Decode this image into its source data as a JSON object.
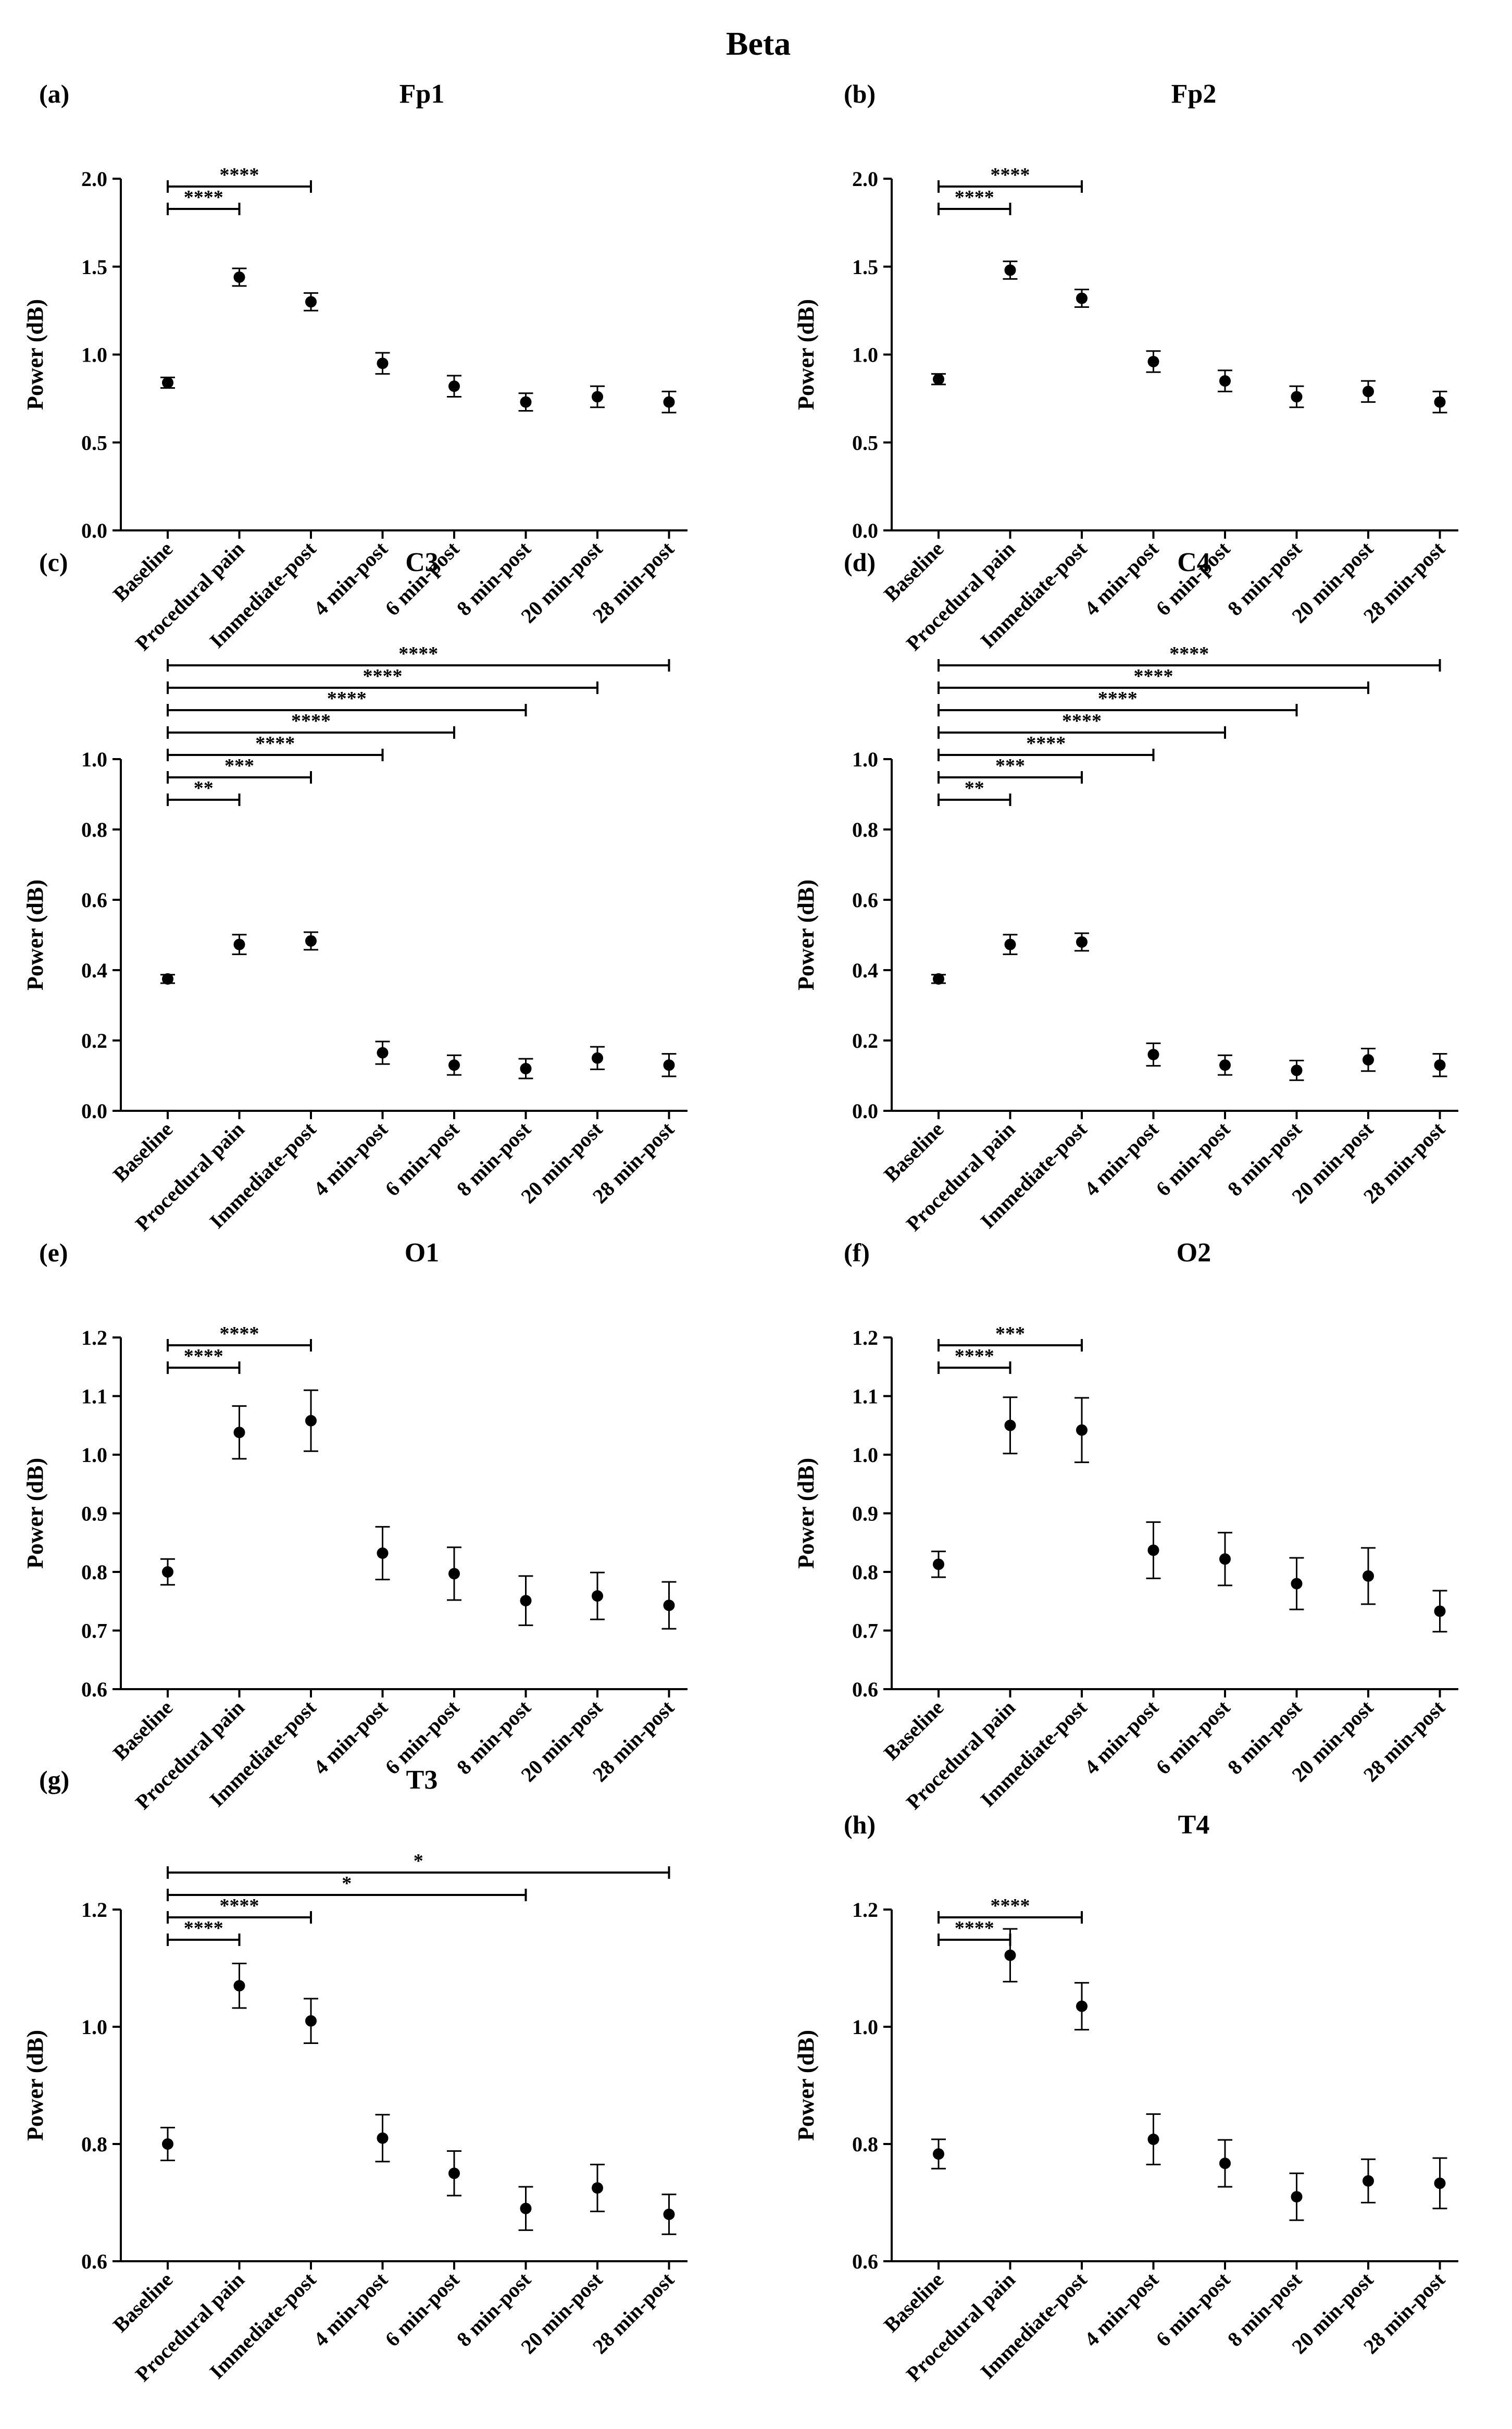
{
  "figure_title": "Beta",
  "chart_data": [
    {
      "id": "a",
      "panel_label": "(a)",
      "type": "scatter",
      "title": "Fp1",
      "xlabel": "",
      "ylabel": "Power (dB)",
      "categories": [
        "Baseline",
        "Procedural pain",
        "Immediate-post",
        "4 min-post",
        "6 min-post",
        "8 min-post",
        "20 min-post",
        "28 min-post"
      ],
      "means": [
        0.84,
        1.44,
        1.3,
        0.95,
        0.82,
        0.73,
        0.76,
        0.73
      ],
      "errors": [
        0.03,
        0.05,
        0.05,
        0.06,
        0.06,
        0.05,
        0.06,
        0.06
      ],
      "ylim": [
        0.0,
        2.0
      ],
      "yticks": [
        0.0,
        0.5,
        1.0,
        1.5,
        2.0
      ],
      "ytick_labels": [
        "0.0",
        "0.5",
        "1.0",
        "1.5",
        "2.0"
      ],
      "significance": [
        {
          "from": 0,
          "to": 1,
          "label": "****"
        },
        {
          "from": 0,
          "to": 2,
          "label": "****"
        }
      ]
    },
    {
      "id": "b",
      "panel_label": "(b)",
      "type": "scatter",
      "title": "Fp2",
      "xlabel": "",
      "ylabel": "Power (dB)",
      "categories": [
        "Baseline",
        "Procedural pain",
        "Immediate-post",
        "4 min-post",
        "6 min-post",
        "8 min-post",
        "20 min-post",
        "28 min-post"
      ],
      "means": [
        0.86,
        1.48,
        1.32,
        0.96,
        0.85,
        0.76,
        0.79,
        0.73
      ],
      "errors": [
        0.03,
        0.05,
        0.05,
        0.06,
        0.06,
        0.06,
        0.06,
        0.06
      ],
      "ylim": [
        0.0,
        2.0
      ],
      "yticks": [
        0.0,
        0.5,
        1.0,
        1.5,
        2.0
      ],
      "ytick_labels": [
        "0.0",
        "0.5",
        "1.0",
        "1.5",
        "2.0"
      ],
      "significance": [
        {
          "from": 0,
          "to": 1,
          "label": "****"
        },
        {
          "from": 0,
          "to": 2,
          "label": "****"
        }
      ]
    },
    {
      "id": "c",
      "panel_label": "(c)",
      "type": "scatter",
      "title": "C3",
      "xlabel": "",
      "ylabel": "Power (dB)",
      "categories": [
        "Baseline",
        "Procedural pain",
        "Immediate-post",
        "4 min-post",
        "6 min-post",
        "8 min-post",
        "20 min-post",
        "28 min-post"
      ],
      "means": [
        0.375,
        0.473,
        0.483,
        0.165,
        0.13,
        0.12,
        0.15,
        0.13
      ],
      "errors": [
        0.012,
        0.028,
        0.025,
        0.032,
        0.028,
        0.028,
        0.032,
        0.032
      ],
      "ylim": [
        0.0,
        1.0
      ],
      "yticks": [
        0.0,
        0.2,
        0.4,
        0.6,
        0.8,
        1.0
      ],
      "ytick_labels": [
        "0.0",
        "0.2",
        "0.4",
        "0.6",
        "0.8",
        "1.0"
      ],
      "significance": [
        {
          "from": 0,
          "to": 1,
          "label": "**"
        },
        {
          "from": 0,
          "to": 2,
          "label": "***"
        },
        {
          "from": 0,
          "to": 3,
          "label": "****"
        },
        {
          "from": 0,
          "to": 4,
          "label": "****"
        },
        {
          "from": 0,
          "to": 5,
          "label": "****"
        },
        {
          "from": 0,
          "to": 6,
          "label": "****"
        },
        {
          "from": 0,
          "to": 7,
          "label": "****"
        }
      ]
    },
    {
      "id": "d",
      "panel_label": "(d)",
      "type": "scatter",
      "title": "C4",
      "xlabel": "",
      "ylabel": "Power (dB)",
      "categories": [
        "Baseline",
        "Procedural pain",
        "Immediate-post",
        "4 min-post",
        "6 min-post",
        "8 min-post",
        "20 min-post",
        "28 min-post"
      ],
      "means": [
        0.375,
        0.473,
        0.48,
        0.16,
        0.13,
        0.115,
        0.145,
        0.13
      ],
      "errors": [
        0.012,
        0.028,
        0.025,
        0.032,
        0.028,
        0.028,
        0.032,
        0.032
      ],
      "ylim": [
        0.0,
        1.0
      ],
      "yticks": [
        0.0,
        0.2,
        0.4,
        0.6,
        0.8,
        1.0
      ],
      "ytick_labels": [
        "0.0",
        "0.2",
        "0.4",
        "0.6",
        "0.8",
        "1.0"
      ],
      "significance": [
        {
          "from": 0,
          "to": 1,
          "label": "**"
        },
        {
          "from": 0,
          "to": 2,
          "label": "***"
        },
        {
          "from": 0,
          "to": 3,
          "label": "****"
        },
        {
          "from": 0,
          "to": 4,
          "label": "****"
        },
        {
          "from": 0,
          "to": 5,
          "label": "****"
        },
        {
          "from": 0,
          "to": 6,
          "label": "****"
        },
        {
          "from": 0,
          "to": 7,
          "label": "****"
        }
      ]
    },
    {
      "id": "e",
      "panel_label": "(e)",
      "type": "scatter",
      "title": "O1",
      "xlabel": "",
      "ylabel": "Power (dB)",
      "categories": [
        "Baseline",
        "Procedural pain",
        "Immediate-post",
        "4 min-post",
        "6 min-post",
        "8 min-post",
        "20 min-post",
        "28 min-post"
      ],
      "means": [
        0.8,
        1.038,
        1.058,
        0.832,
        0.797,
        0.751,
        0.759,
        0.743
      ],
      "errors": [
        0.022,
        0.045,
        0.052,
        0.045,
        0.045,
        0.042,
        0.04,
        0.04
      ],
      "ylim": [
        0.6,
        1.2
      ],
      "yticks": [
        0.6,
        0.7,
        0.8,
        0.9,
        1.0,
        1.1,
        1.2
      ],
      "ytick_labels": [
        "0.6",
        "0.7",
        "0.8",
        "0.9",
        "1.0",
        "1.1",
        "1.2"
      ],
      "significance": [
        {
          "from": 0,
          "to": 1,
          "label": "****"
        },
        {
          "from": 0,
          "to": 2,
          "label": "****"
        }
      ]
    },
    {
      "id": "f",
      "panel_label": "(f)",
      "type": "scatter",
      "title": "O2",
      "xlabel": "",
      "ylabel": "Power (dB)",
      "categories": [
        "Baseline",
        "Procedural pain",
        "Immediate-post",
        "4 min-post",
        "6 min-post",
        "8 min-post",
        "20 min-post",
        "28 min-post"
      ],
      "means": [
        0.813,
        1.05,
        1.042,
        0.837,
        0.822,
        0.78,
        0.793,
        0.733
      ],
      "errors": [
        0.022,
        0.048,
        0.055,
        0.048,
        0.045,
        0.044,
        0.048,
        0.035
      ],
      "ylim": [
        0.6,
        1.2
      ],
      "yticks": [
        0.6,
        0.7,
        0.8,
        0.9,
        1.0,
        1.1,
        1.2
      ],
      "ytick_labels": [
        "0.6",
        "0.7",
        "0.8",
        "0.9",
        "1.0",
        "1.1",
        "1.2"
      ],
      "significance": [
        {
          "from": 0,
          "to": 1,
          "label": "****"
        },
        {
          "from": 0,
          "to": 2,
          "label": "***"
        }
      ]
    },
    {
      "id": "g",
      "panel_label": "(g)",
      "type": "scatter",
      "title": "T3",
      "xlabel": "",
      "ylabel": "Power (dB)",
      "categories": [
        "Baseline",
        "Procedural pain",
        "Immediate-post",
        "4 min-post",
        "6 min-post",
        "8 min-post",
        "20 min-post",
        "28 min-post"
      ],
      "means": [
        0.8,
        1.07,
        1.01,
        0.81,
        0.75,
        0.69,
        0.725,
        0.68
      ],
      "errors": [
        0.028,
        0.038,
        0.038,
        0.04,
        0.038,
        0.037,
        0.04,
        0.034
      ],
      "ylim": [
        0.6,
        1.2
      ],
      "yticks": [
        0.6,
        0.8,
        1.0,
        1.2
      ],
      "ytick_labels": [
        "0.6",
        "0.8",
        "1.0",
        "1.2"
      ],
      "significance": [
        {
          "from": 0,
          "to": 1,
          "label": "****"
        },
        {
          "from": 0,
          "to": 2,
          "label": "****"
        },
        {
          "from": 0,
          "to": 5,
          "label": "*"
        },
        {
          "from": 0,
          "to": 7,
          "label": "*"
        }
      ]
    },
    {
      "id": "h",
      "panel_label": "(h)",
      "type": "scatter",
      "title": "T4",
      "xlabel": "",
      "ylabel": "Power (dB)",
      "categories": [
        "Baseline",
        "Procedural pain",
        "Immediate-post",
        "4 min-post",
        "6 min-post",
        "8 min-post",
        "20 min-post",
        "28 min-post"
      ],
      "means": [
        0.783,
        1.122,
        1.035,
        0.808,
        0.767,
        0.71,
        0.737,
        0.733
      ],
      "errors": [
        0.025,
        0.045,
        0.04,
        0.043,
        0.04,
        0.04,
        0.037,
        0.043
      ],
      "ylim": [
        0.6,
        1.2
      ],
      "yticks": [
        0.6,
        0.8,
        1.0,
        1.2
      ],
      "ytick_labels": [
        "0.6",
        "0.8",
        "1.0",
        "1.2"
      ],
      "significance": [
        {
          "from": 0,
          "to": 1,
          "label": "****"
        },
        {
          "from": 0,
          "to": 2,
          "label": "****"
        }
      ]
    }
  ]
}
